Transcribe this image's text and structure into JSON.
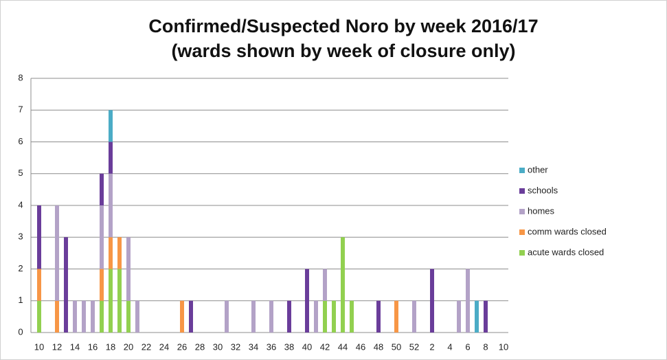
{
  "chart_data": {
    "type": "bar",
    "stacked": true,
    "title": "Confirmed/Suspected Noro by week 2016/17",
    "subtitle": "(wards shown by week of closure only)",
    "categories": [
      10,
      null,
      12,
      null,
      14,
      null,
      16,
      null,
      18,
      null,
      20,
      null,
      22,
      null,
      24,
      null,
      26,
      null,
      28,
      null,
      30,
      null,
      32,
      null,
      34,
      null,
      36,
      null,
      38,
      null,
      40,
      null,
      42,
      null,
      44,
      null,
      46,
      null,
      48,
      null,
      50,
      null,
      52,
      null,
      2,
      null,
      4,
      null,
      6,
      null,
      8,
      null,
      10
    ],
    "series": [
      {
        "name": "acute wards closed",
        "color": "#92d050",
        "values": [
          1,
          0,
          0,
          0,
          0,
          0,
          0,
          1,
          2,
          2,
          1,
          0,
          0,
          0,
          0,
          0,
          0,
          0,
          0,
          0,
          0,
          0,
          0,
          0,
          0,
          0,
          0,
          0,
          0,
          0,
          0,
          0,
          1,
          1,
          3,
          1,
          0,
          0,
          0,
          0,
          0,
          0,
          0,
          0,
          0,
          0,
          0,
          0,
          0,
          0,
          0,
          0,
          0
        ]
      },
      {
        "name": "comm wards closed",
        "color": "#f79646",
        "values": [
          1,
          0,
          1,
          0,
          0,
          0,
          0,
          1,
          1,
          1,
          0,
          0,
          0,
          0,
          0,
          0,
          1,
          0,
          0,
          0,
          0,
          0,
          0,
          0,
          0,
          0,
          0,
          0,
          0,
          0,
          0,
          0,
          0,
          0,
          0,
          0,
          0,
          0,
          0,
          0,
          1,
          0,
          0,
          0,
          0,
          0,
          0,
          0,
          0,
          0,
          0,
          0,
          0
        ]
      },
      {
        "name": "homes",
        "color": "#b3a2c7",
        "values": [
          0,
          0,
          3,
          0,
          1,
          1,
          1,
          2,
          2,
          0,
          2,
          1,
          0,
          0,
          0,
          0,
          0,
          0,
          0,
          0,
          0,
          1,
          0,
          0,
          1,
          0,
          1,
          0,
          0,
          0,
          0,
          1,
          1,
          0,
          0,
          0,
          0,
          0,
          0,
          0,
          0,
          0,
          1,
          0,
          0,
          0,
          0,
          1,
          2,
          0,
          0,
          0,
          0
        ]
      },
      {
        "name": "schools",
        "color": "#6a3d9a",
        "values": [
          2,
          0,
          0,
          3,
          0,
          0,
          0,
          1,
          1,
          0,
          0,
          0,
          0,
          0,
          0,
          0,
          0,
          1,
          0,
          0,
          0,
          0,
          0,
          0,
          0,
          0,
          0,
          0,
          1,
          0,
          2,
          0,
          0,
          0,
          0,
          0,
          0,
          0,
          1,
          0,
          0,
          0,
          0,
          0,
          2,
          0,
          0,
          0,
          0,
          0,
          1,
          0,
          0
        ]
      },
      {
        "name": "other",
        "color": "#4bacc6",
        "values": [
          0,
          0,
          0,
          0,
          0,
          0,
          0,
          0,
          1,
          0,
          0,
          0,
          0,
          0,
          0,
          0,
          0,
          0,
          0,
          0,
          0,
          0,
          0,
          0,
          0,
          0,
          0,
          0,
          0,
          0,
          0,
          0,
          0,
          0,
          0,
          0,
          0,
          0,
          0,
          0,
          0,
          0,
          0,
          0,
          0,
          0,
          0,
          0,
          0,
          1,
          0,
          0,
          0
        ]
      }
    ],
    "ylim": [
      0,
      8
    ],
    "yticks": [
      0,
      1,
      2,
      3,
      4,
      5,
      6,
      7,
      8
    ],
    "grid": true
  }
}
